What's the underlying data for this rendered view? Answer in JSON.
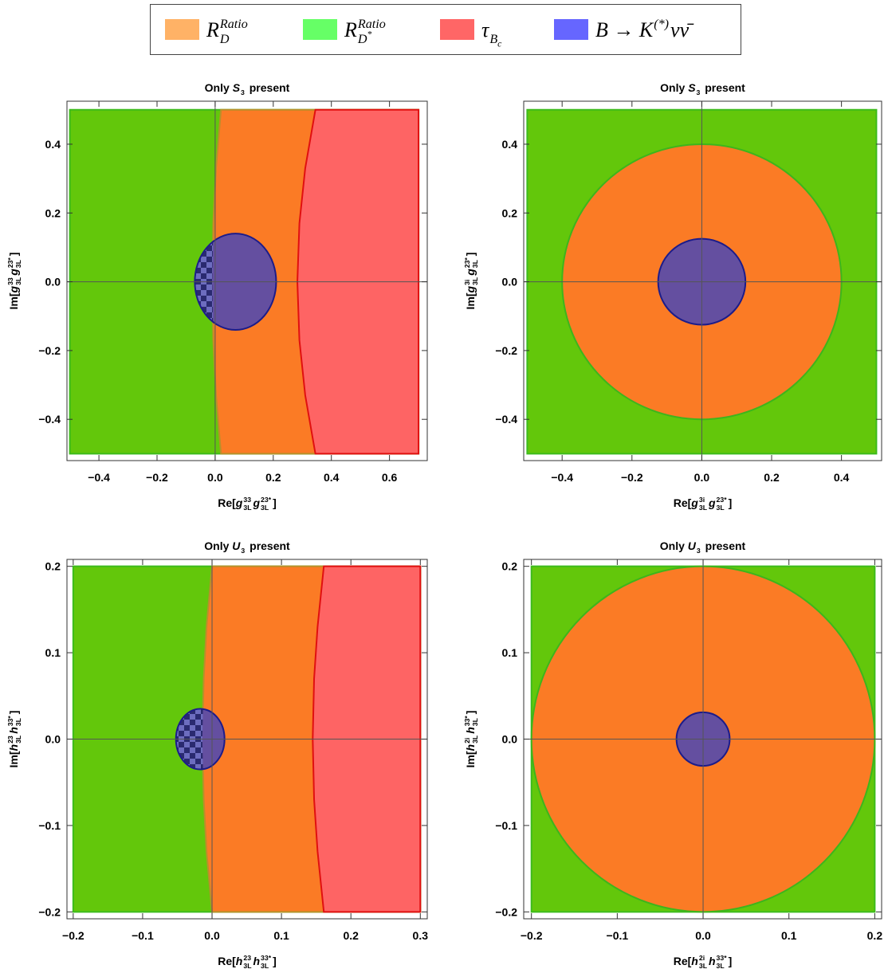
{
  "legend": {
    "entries": [
      {
        "color": "#ffb266",
        "label": [
          {
            "base": "R",
            "sup": "Ratio",
            "sub": "D"
          }
        ]
      },
      {
        "color": "#66ff66",
        "label": [
          {
            "base": "R",
            "sup": "Ratio",
            "sub": "D",
            "subsup": "*"
          }
        ]
      },
      {
        "color": "#ff6666",
        "label": [
          {
            "base": "τ",
            "sub": "B",
            "subsub": "c"
          }
        ]
      },
      {
        "color": "#6666ff",
        "label": [
          {
            "base": "B → K",
            "sup": "(*)"
          },
          {
            "base": "νν̄"
          }
        ]
      }
    ]
  },
  "chart_data": [
    {
      "type": "region",
      "title": [
        {
          "base": "Only "
        },
        {
          "base": "S",
          "sub": "3",
          "italic": true
        },
        {
          "base": " present"
        }
      ],
      "xlabel": [
        {
          "base": "Re["
        },
        {
          "base": "g",
          "sup": "33",
          "sub": "3L",
          "italic": true
        },
        {
          "base": "g",
          "sup": "23*",
          "sub": "3L",
          "italic": true
        },
        {
          "base": "]"
        }
      ],
      "ylabel": [
        {
          "base": "Im["
        },
        {
          "base": "g",
          "sup": "33",
          "sub": "3L",
          "italic": true
        },
        {
          "base": "g",
          "sup": "23*",
          "sub": "3L",
          "italic": true
        },
        {
          "base": "]"
        }
      ],
      "xlim": [
        -0.51,
        0.73
      ],
      "ylim": [
        -0.52,
        0.525
      ],
      "xticks": [
        {
          "value": -0.4,
          "label": "−0.4"
        },
        {
          "value": -0.2,
          "label": "−0.2"
        },
        {
          "value": 0,
          "label": "0.0"
        },
        0.2,
        0.4,
        0.6
      ],
      "yticks": [
        {
          "value": -0.4,
          "label": "−0.4"
        },
        {
          "value": -0.2,
          "label": "−0.2"
        },
        {
          "value": 0,
          "label": "0.0"
        },
        0.2,
        0.4
      ],
      "series": [
        {
          "color": "#63c70b",
          "edge": "#3dbb1c",
          "x": [
            -0.5,
            0.7,
            0.7,
            -0.5
          ],
          "y": [
            0.5,
            0.5,
            -0.5,
            -0.5
          ]
        },
        {
          "color": "#fb7b25",
          "edge": "#b8902a",
          "x": [
            0.02,
            0.003,
            -0.0065,
            -0.01,
            -0.0065,
            0.003,
            0.02,
            0.7,
            0.7
          ],
          "y": [
            0.5,
            0.33,
            0.17,
            0,
            -0.17,
            -0.33,
            -0.5,
            -0.5,
            0.5
          ]
        },
        {
          "color": "#fe6464",
          "edge": "#e01010",
          "x": [
            0.345,
            0.31,
            0.29,
            0.283,
            0.29,
            0.31,
            0.345,
            0.7,
            0.7
          ],
          "y": [
            0.5,
            0.33,
            0.17,
            0,
            -0.17,
            -0.33,
            -0.5,
            -0.5,
            0.5
          ]
        },
        {
          "color": "#644fa0",
          "edge": "#1c1c8a",
          "cx": 0.07,
          "cy": 0,
          "r": 0.14
        }
      ]
    },
    {
      "type": "region",
      "title": [
        {
          "base": "Only "
        },
        {
          "base": "S",
          "sub": "3",
          "italic": true
        },
        {
          "base": " present"
        }
      ],
      "xlabel": [
        {
          "base": "Re["
        },
        {
          "base": "g",
          "sup": "3i",
          "sub": "3L",
          "italic": true
        },
        {
          "base": "g",
          "sup": "23*",
          "sub": "3L",
          "italic": true
        },
        {
          "base": "]"
        }
      ],
      "ylabel": [
        {
          "base": "Im["
        },
        {
          "base": "g",
          "sup": "3i",
          "sub": "3L",
          "italic": true
        },
        {
          "base": "g",
          "sup": "23*",
          "sub": "3L",
          "italic": true
        },
        {
          "base": "]"
        }
      ],
      "xlim": [
        -0.51,
        0.515
      ],
      "ylim": [
        -0.52,
        0.525
      ],
      "xticks": [
        {
          "value": -0.4,
          "label": "−0.4"
        },
        {
          "value": -0.2,
          "label": "−0.2"
        },
        {
          "value": 0,
          "label": "0.0"
        },
        0.2,
        0.4
      ],
      "yticks": [
        {
          "value": -0.4,
          "label": "−0.4"
        },
        {
          "value": -0.2,
          "label": "−0.2"
        },
        {
          "value": 0,
          "label": "0.0"
        },
        0.2,
        0.4
      ],
      "series": [
        {
          "color": "#63c70b",
          "edge": "#3dbb1c",
          "x": [
            -0.5,
            0.5,
            0.5,
            -0.5
          ],
          "y": [
            0.5,
            0.5,
            -0.5,
            -0.5
          ]
        },
        {
          "color": "#fb7b25",
          "edge": "#3db51c",
          "cx": 0,
          "cy": 0,
          "r": 0.4
        },
        {
          "color": "#644fa0",
          "edge": "#1c1c8a",
          "cx": 0,
          "cy": 0,
          "r": 0.125
        }
      ]
    },
    {
      "type": "region",
      "title": [
        {
          "base": "Only "
        },
        {
          "base": "U",
          "sub": "3",
          "italic": true
        },
        {
          "base": " present"
        }
      ],
      "xlabel": [
        {
          "base": "Re["
        },
        {
          "base": "h",
          "sup": "23",
          "sub": "3L",
          "italic": true
        },
        {
          "base": "h",
          "sup": "33*",
          "sub": "3L",
          "italic": true
        },
        {
          "base": "]"
        }
      ],
      "ylabel": [
        {
          "base": "Im["
        },
        {
          "base": "h",
          "sup": "23",
          "sub": "3L",
          "italic": true
        },
        {
          "base": "h",
          "sup": "33*",
          "sub": "3L",
          "italic": true
        },
        {
          "base": "]"
        }
      ],
      "xlim": [
        -0.209,
        0.31
      ],
      "ylim": [
        -0.208,
        0.208
      ],
      "xticks": [
        {
          "value": -0.2,
          "label": "−0.2"
        },
        {
          "value": -0.1,
          "label": "−0.1"
        },
        {
          "value": 0,
          "label": "0.0"
        },
        0.1,
        0.2,
        0.3
      ],
      "yticks": [
        {
          "value": -0.2,
          "label": "−0.2"
        },
        {
          "value": -0.1,
          "label": "−0.1"
        },
        {
          "value": 0,
          "label": "0.0"
        },
        0.1,
        0.2
      ],
      "series": [
        {
          "color": "#63c70b",
          "edge": "#3dbb1c",
          "x": [
            -0.2,
            0.3,
            0.3,
            -0.2
          ],
          "y": [
            0.2,
            0.2,
            -0.2,
            -0.2
          ]
        },
        {
          "color": "#fb7b25",
          "edge": "#b8902a",
          "x": [
            0,
            -0.008,
            -0.012,
            -0.014,
            -0.012,
            -0.008,
            0,
            0.3,
            0.3
          ],
          "y": [
            0.2,
            0.13,
            0.07,
            0,
            -0.07,
            -0.13,
            -0.2,
            -0.2,
            0.2
          ]
        },
        {
          "color": "#fe6464",
          "edge": "#e01010",
          "x": [
            0.161,
            0.152,
            0.147,
            0.145,
            0.147,
            0.152,
            0.161,
            0.3,
            0.3
          ],
          "y": [
            0.2,
            0.13,
            0.07,
            0,
            -0.07,
            -0.13,
            -0.2,
            -0.2,
            0.2
          ]
        },
        {
          "color": "#644fa0",
          "edge": "#1c1c8a",
          "cx": -0.017,
          "cy": 0,
          "r": 0.035
        }
      ]
    },
    {
      "type": "region",
      "title": [
        {
          "base": "Only "
        },
        {
          "base": "U",
          "sub": "3",
          "italic": true
        },
        {
          "base": " present"
        }
      ],
      "xlabel": [
        {
          "base": "Re["
        },
        {
          "base": "h",
          "sup": "2i",
          "sub": "3L",
          "italic": true
        },
        {
          "base": "h",
          "sup": "33*",
          "sub": "3L",
          "italic": true
        },
        {
          "base": "]"
        }
      ],
      "ylabel": [
        {
          "base": "Im["
        },
        {
          "base": "h",
          "sup": "2i",
          "sub": "3L",
          "italic": true
        },
        {
          "base": "h",
          "sup": "33*",
          "sub": "3L",
          "italic": true
        },
        {
          "base": "]"
        }
      ],
      "xlim": [
        -0.209,
        0.208
      ],
      "ylim": [
        -0.208,
        0.208
      ],
      "xticks": [
        {
          "value": -0.2,
          "label": "−0.2"
        },
        {
          "value": -0.1,
          "label": "−0.1"
        },
        {
          "value": 0,
          "label": "0.0"
        },
        0.1,
        0.2
      ],
      "yticks": [
        {
          "value": -0.2,
          "label": "−0.2"
        },
        {
          "value": -0.1,
          "label": "−0.1"
        },
        {
          "value": 0,
          "label": "0.0"
        },
        0.1,
        0.2
      ],
      "series": [
        {
          "color": "#63c70b",
          "edge": "#3dbb1c",
          "x": [
            -0.2,
            0.2,
            0.2,
            -0.2
          ],
          "y": [
            0.2,
            0.2,
            -0.2,
            -0.2
          ]
        },
        {
          "color": "#fb7b25",
          "edge": "#3db51c",
          "cx": 0,
          "cy": 0,
          "r": 0.2
        },
        {
          "color": "#644fa0",
          "edge": "#1c1c8a",
          "cx": 0,
          "cy": 0,
          "r": 0.031
        }
      ]
    }
  ]
}
